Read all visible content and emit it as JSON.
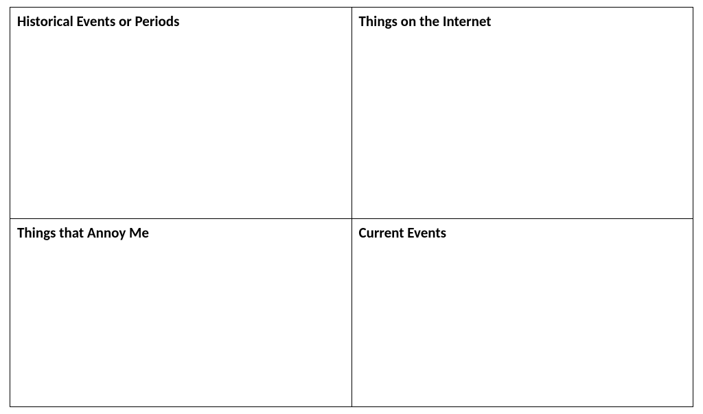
{
  "table": {
    "type": "table",
    "rows": 2,
    "cols": 2,
    "border_color": "#000000",
    "border_width": 1,
    "background_color": "#ffffff",
    "heading_font_weight": "bold",
    "heading_font_size_pt": 16,
    "heading_color": "#000000",
    "col_widths_pct": [
      50,
      50
    ],
    "row_heights_pct": [
      53,
      47
    ],
    "cells": {
      "r0c0": {
        "heading": "Historical Events or Periods",
        "body": ""
      },
      "r0c1": {
        "heading": "Things on the Internet",
        "body": ""
      },
      "r1c0": {
        "heading": "Things that Annoy Me",
        "body": ""
      },
      "r1c1": {
        "heading": "Current Events",
        "body": ""
      }
    }
  }
}
